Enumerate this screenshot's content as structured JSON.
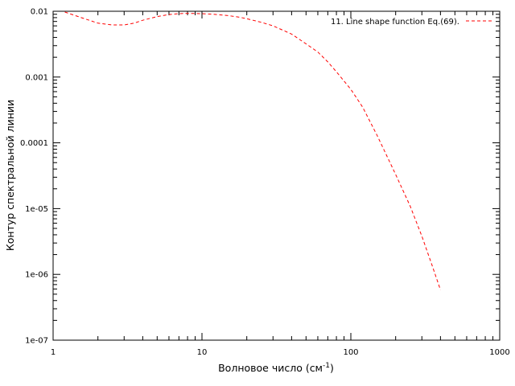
{
  "chart_data": {
    "type": "line",
    "title": "",
    "xlabel": "Волновое число (см",
    "xlabel_sup": "-1",
    "xlabel_close": ")",
    "ylabel": "Контур спектральной линии",
    "x_scale": "log",
    "y_scale": "log",
    "xlim": [
      1,
      1000
    ],
    "ylim": [
      1e-07,
      0.01
    ],
    "grid": false,
    "legend_position": "top-right",
    "x_ticks": [
      {
        "value": 1,
        "label": "1"
      },
      {
        "value": 10,
        "label": "10"
      },
      {
        "value": 100,
        "label": "100"
      },
      {
        "value": 1000,
        "label": "1000"
      }
    ],
    "y_ticks": [
      {
        "value": 1e-07,
        "label": "1e-07"
      },
      {
        "value": 1e-06,
        "label": "1e-06"
      },
      {
        "value": 1e-05,
        "label": "1e-05"
      },
      {
        "value": 0.0001,
        "label": "0.0001"
      },
      {
        "value": 0.001,
        "label": "0.001"
      },
      {
        "value": 0.01,
        "label": "0.01"
      }
    ],
    "series": [
      {
        "name": "11. Line shape function Eq.(69).",
        "color": "#ff0000",
        "line_style": "dashed",
        "x": [
          1.2,
          1.5,
          2.0,
          2.5,
          3.0,
          3.5,
          4.0,
          5.0,
          6.0,
          7.0,
          8.0,
          10.0,
          12.0,
          15.0,
          18.0,
          20.0,
          25.0,
          30.0,
          40.0,
          50.0,
          60.0,
          70.0,
          80.0,
          100.0,
          120.0,
          150.0,
          200.0,
          250.0,
          300.0,
          350.0,
          400.0
        ],
        "y": [
          0.0098,
          0.0082,
          0.0066,
          0.0062,
          0.0062,
          0.0066,
          0.0073,
          0.0083,
          0.0089,
          0.0092,
          0.0093,
          0.0092,
          0.009,
          0.0086,
          0.0081,
          0.0077,
          0.0068,
          0.006,
          0.0045,
          0.0032,
          0.0024,
          0.0017,
          0.0012,
          0.00065,
          0.00035,
          0.00013,
          3.3e-05,
          1.1e-05,
          3.8e-06,
          1.4e-06,
          5.8e-07
        ]
      }
    ]
  }
}
